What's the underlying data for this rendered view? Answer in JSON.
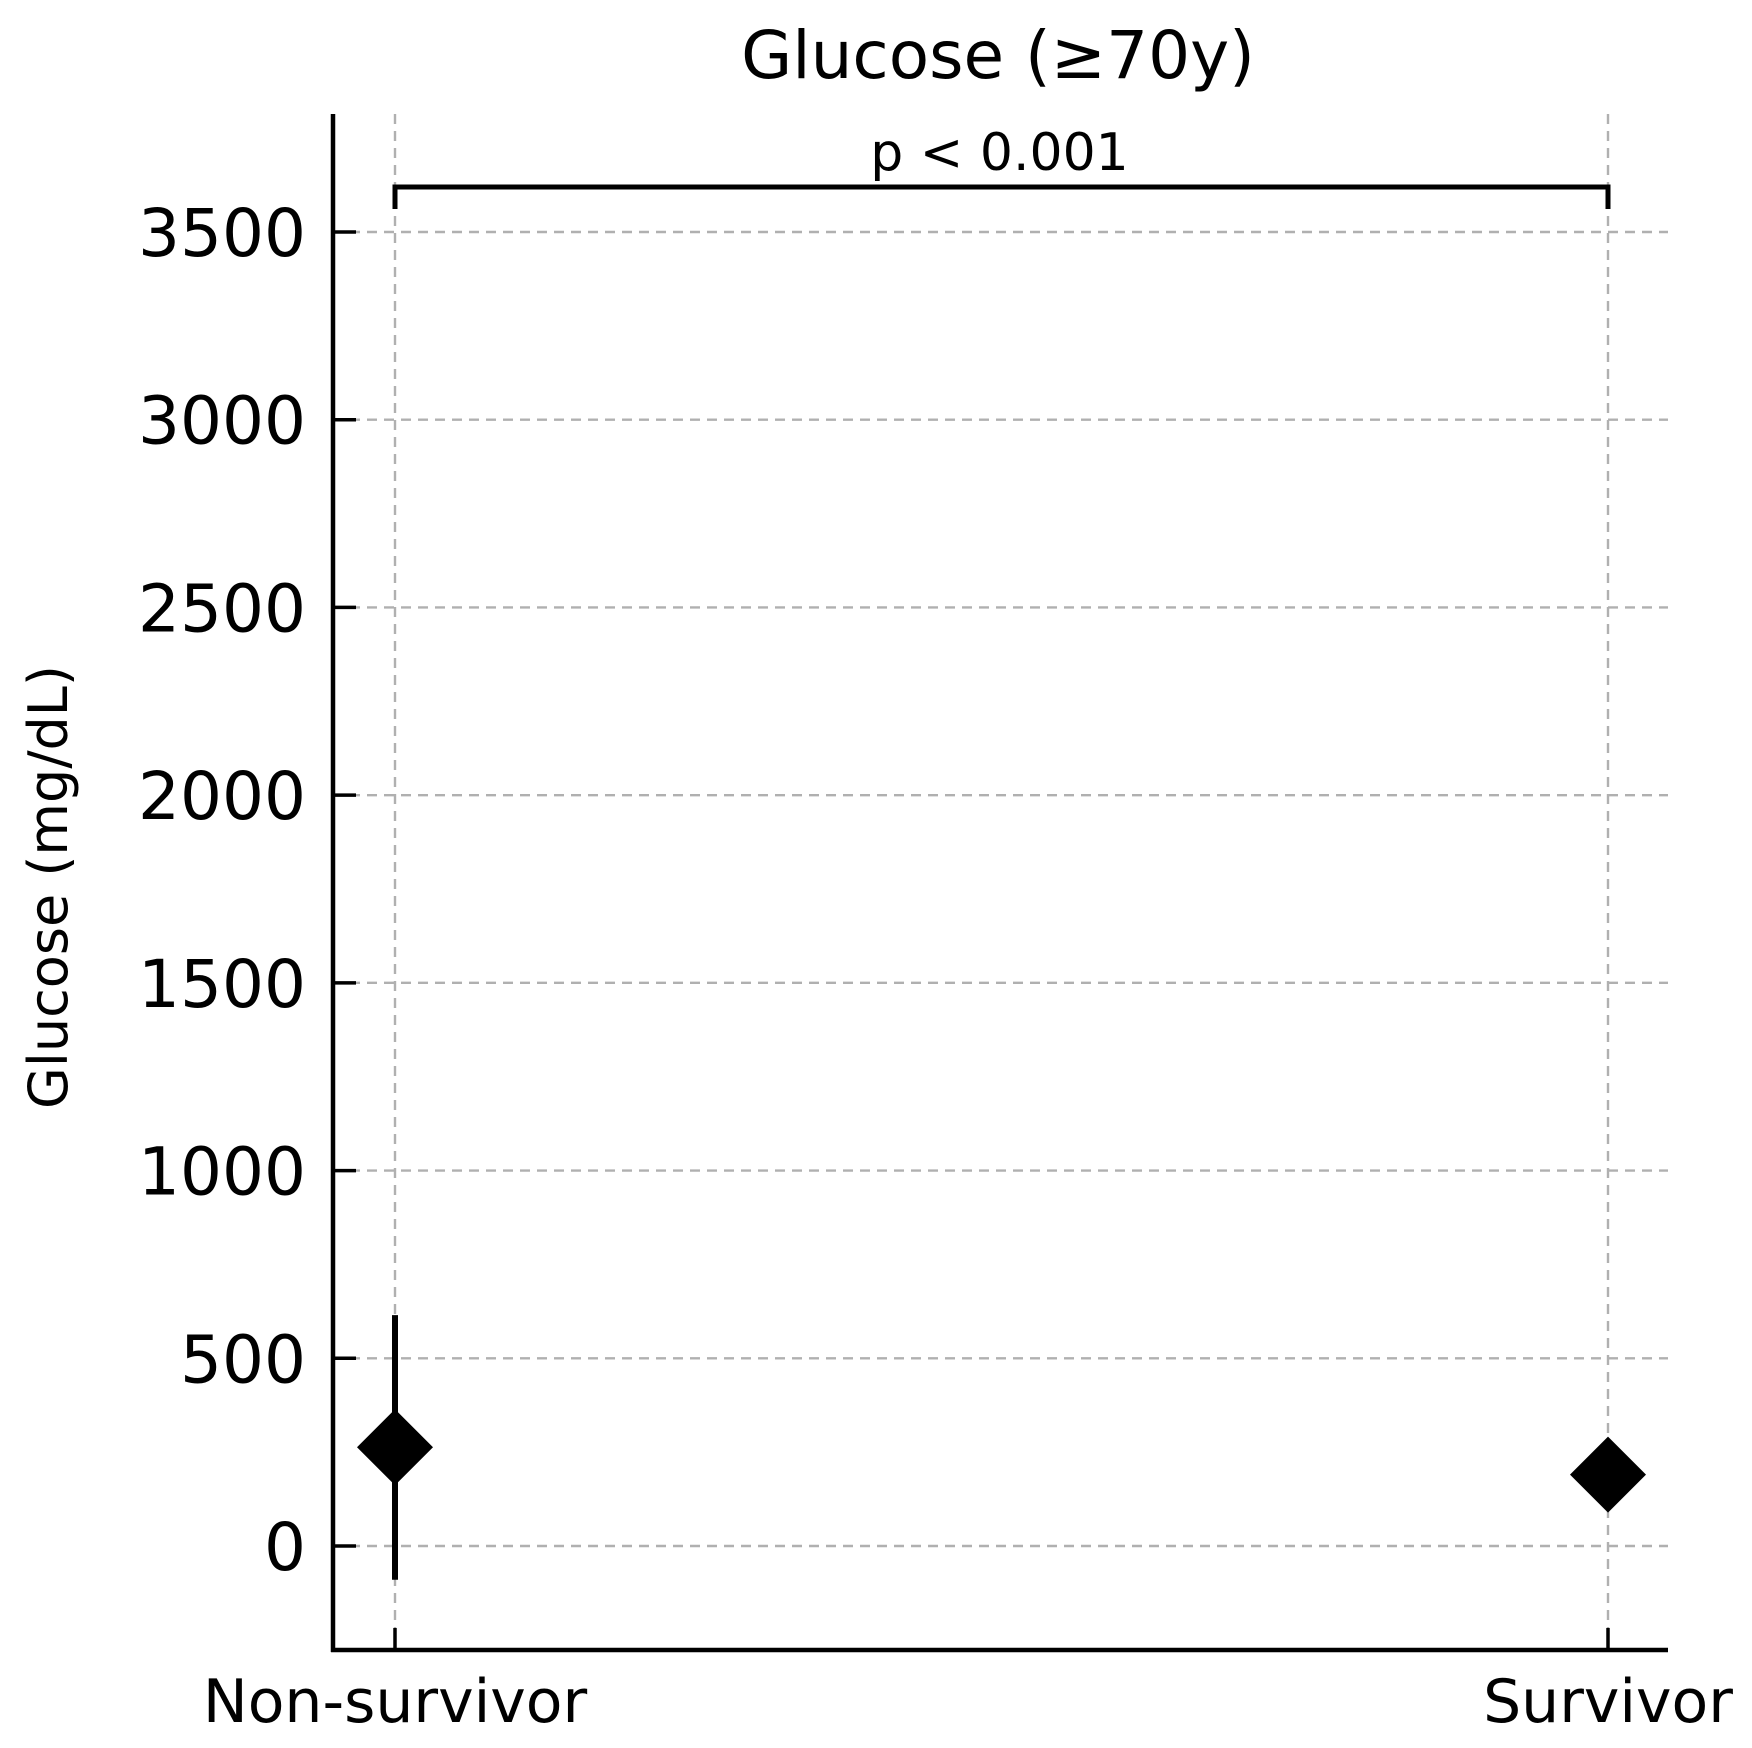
{
  "chart_data": {
    "type": "scatter",
    "title": "Glucose (≥70y)",
    "xlabel": "",
    "ylabel": "Glucose (mg/dL)",
    "categories": [
      "Non-survivor",
      "Survivor"
    ],
    "ylim": [
      -280,
      3800
    ],
    "yticks": [
      0,
      500,
      1000,
      1500,
      2000,
      2500,
      3000,
      3500
    ],
    "ytick_labels": [
      "0",
      "500",
      "1000",
      "1500",
      "2000",
      "2500",
      "3000",
      "3500"
    ],
    "grid": true,
    "marker": "diamond",
    "points": [
      {
        "category": "Non-survivor",
        "value": 263,
        "err_low": -90,
        "err_high": 615
      },
      {
        "category": "Survivor",
        "value": 190,
        "err_low": null,
        "err_high": null
      }
    ],
    "annotations": [
      {
        "text": "p < 0.001",
        "type": "significance-bracket",
        "y": 3620,
        "from": "Non-survivor",
        "to": "Survivor"
      }
    ]
  }
}
